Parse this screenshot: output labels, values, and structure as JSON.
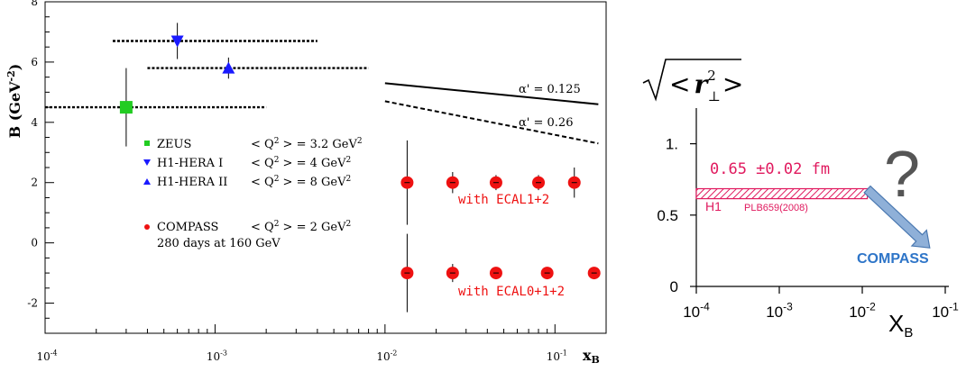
{
  "chart_data": [
    {
      "type": "scatter",
      "xscale": "log",
      "xlim": [
        0.0001,
        0.2
      ],
      "ylim": [
        -3,
        8
      ],
      "ylabel": "B (GeV",
      "ylabel_sup": "-2",
      "ylabel_close": ")",
      "xlabel": "x",
      "xlabel_sub": "B",
      "x_ticks": [
        {
          "value": 0.0001,
          "base": "10",
          "exp": "-4"
        },
        {
          "value": 0.001,
          "base": "10",
          "exp": "-3"
        },
        {
          "value": 0.01,
          "base": "10",
          "exp": "-2"
        },
        {
          "value": 0.1,
          "base": "10",
          "exp": "-1"
        }
      ],
      "y_ticks": [
        {
          "value": -2,
          "label": "-2"
        },
        {
          "value": 0,
          "label": "0"
        },
        {
          "value": 2,
          "label": "2"
        },
        {
          "value": 4,
          "label": "4"
        },
        {
          "value": 6,
          "label": "6"
        },
        {
          "value": 8,
          "label": "8"
        }
      ],
      "series": [
        {
          "name": "ZEUS",
          "q2_prefix": "< Q",
          "q2_mid": " > = 3.2 GeV",
          "marker": "square",
          "color": "#22cc22",
          "points": [
            {
              "x": 0.0003,
              "y": 4.5,
              "xmin": 0.0001,
              "xmax": 0.002,
              "err": 1.3
            }
          ]
        },
        {
          "name": "H1-HERA I",
          "q2_prefix": "< Q",
          "q2_mid": " > = 4 GeV",
          "marker": "triangle-down",
          "color": "#1a1aff",
          "points": [
            {
              "x": 0.0006,
              "y": 6.7,
              "xmin": 0.00025,
              "xmax": 0.004,
              "err": 0.6
            }
          ]
        },
        {
          "name": "H1-HERA II",
          "q2_prefix": "< Q",
          "q2_mid": " > = 8 GeV",
          "marker": "triangle-up",
          "color": "#1a1aff",
          "points": [
            {
              "x": 0.0012,
              "y": 5.8,
              "xmin": 0.0004,
              "xmax": 0.008,
              "err": 0.35
            }
          ]
        },
        {
          "name": "COMPASS",
          "q2_prefix": "< Q",
          "q2_mid": " > = 2 GeV",
          "marker": "circle",
          "color": "#ee1111",
          "points": [
            {
              "x": 0.0135,
              "y": 2.0,
              "err": 1.4
            },
            {
              "x": 0.025,
              "y": 2.0,
              "err": 0.35
            },
            {
              "x": 0.045,
              "y": 2.0,
              "err": 0.25
            },
            {
              "x": 0.08,
              "y": 2.0,
              "err": 0.25
            },
            {
              "x": 0.13,
              "y": 2.0,
              "err": 0.5
            },
            {
              "x": 0.0135,
              "y": -1.0,
              "err": 1.3
            },
            {
              "x": 0.025,
              "y": -1.0,
              "err": 0.3
            },
            {
              "x": 0.045,
              "y": -1.0,
              "err": 0.2
            },
            {
              "x": 0.09,
              "y": -1.0,
              "err": 0.2
            },
            {
              "x": 0.17,
              "y": -1.0,
              "err": 0.2
            }
          ]
        }
      ],
      "compass_note": "280 days at 160 GeV",
      "legend_sup": "2",
      "trend_lines": [
        {
          "label_greek": "α'",
          "label_val": " = 0.125",
          "style": "solid",
          "x0": 0.01,
          "y0": 5.3,
          "x1": 0.18,
          "y1": 4.6
        },
        {
          "label_greek": "α'",
          "label_val": " = 0.26",
          "style": "dashed",
          "x0": 0.01,
          "y0": 4.7,
          "x1": 0.18,
          "y1": 3.3
        }
      ],
      "annotations": [
        "with ECAL1+2",
        "with ECAL0+1+2"
      ]
    },
    {
      "type": "bar",
      "xscale": "log",
      "xlim": [
        0.0001,
        0.1
      ],
      "ylim": [
        0,
        1.25
      ],
      "ylabel_prefix": "<",
      "ylabel_var": "r",
      "ylabel_sub": "⊥",
      "ylabel_sup": "2",
      "ylabel_suffix": ">",
      "xlabel": "X",
      "xlabel_sub": "B",
      "x_ticks": [
        {
          "value": 0.0001,
          "base": "10",
          "exp": "-4"
        },
        {
          "value": 0.001,
          "base": "10",
          "exp": "-3"
        },
        {
          "value": 0.01,
          "base": "10",
          "exp": "-2"
        },
        {
          "value": 0.1,
          "base": "10",
          "exp": "-1"
        }
      ],
      "y_ticks": [
        {
          "value": 0,
          "label": "0"
        },
        {
          "value": 0.5,
          "label": "0.5"
        },
        {
          "value": 1,
          "label": "1."
        }
      ],
      "band": {
        "value": 0.65,
        "err": 0.02,
        "x0": 0.0001,
        "x1": 0.0115,
        "color": "#e0195e"
      },
      "band_label": "0.65 ±0.02 fm",
      "h1_label": "H1",
      "ref_label": "PLB659(2008)",
      "question": "?",
      "compass_label": "COMPASS",
      "arrow": {
        "x0": 0.0115,
        "y0": 0.68,
        "x1": 0.065,
        "y1": 0.27,
        "color": "#8fb0d8"
      }
    }
  ]
}
